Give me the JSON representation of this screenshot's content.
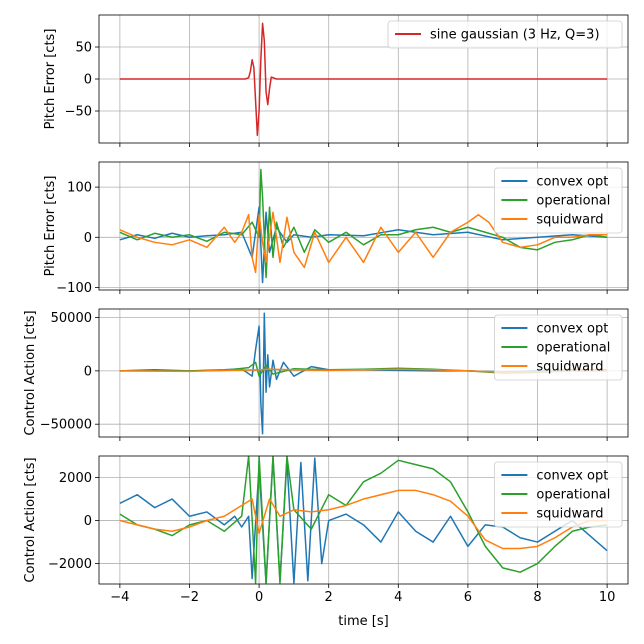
{
  "chart_data": [
    {
      "type": "line",
      "ylabel": "Pitch Error [cts]",
      "xlim": [
        -4.6,
        10.6
      ],
      "ylim": [
        -100,
        100
      ],
      "xticks": [
        -4,
        -2,
        0,
        2,
        4,
        6,
        8,
        10
      ],
      "xticklabels": [
        "",
        "",
        "",
        "",
        "",
        "",
        "",
        ""
      ],
      "yticks": [
        -50,
        0,
        50
      ],
      "yticklabels": [
        "−50",
        "0",
        "50"
      ],
      "grid": true,
      "legend_position": "top-right",
      "series": [
        {
          "name": "sine gaussian (3 Hz, Q=3)",
          "color": "#d62728",
          "x": [
            -4,
            -1,
            -0.4,
            -0.3,
            -0.25,
            -0.2,
            -0.15,
            -0.1,
            -0.05,
            0,
            0.05,
            0.1,
            0.15,
            0.2,
            0.25,
            0.3,
            0.35,
            0.4,
            0.5,
            1,
            10
          ],
          "y": [
            0,
            0,
            0,
            2,
            12,
            30,
            18,
            -35,
            -88,
            -50,
            30,
            87,
            60,
            -20,
            -40,
            -15,
            3,
            2,
            0,
            0,
            0
          ]
        }
      ]
    },
    {
      "type": "line",
      "ylabel": "Pitch Error [cts]",
      "xlim": [
        -4.6,
        10.6
      ],
      "ylim": [
        -105,
        150
      ],
      "xticks": [
        -4,
        -2,
        0,
        2,
        4,
        6,
        8,
        10
      ],
      "xticklabels": [
        "",
        "",
        "",
        "",
        "",
        "",
        "",
        ""
      ],
      "yticks": [
        -100,
        0,
        100
      ],
      "yticklabels": [
        "−100",
        "0",
        "100"
      ],
      "grid": true,
      "legend_position": "top-right",
      "series": [
        {
          "name": "convex opt",
          "color": "#1f77b4",
          "x": [
            -4,
            -3.5,
            -3,
            -2.5,
            -2,
            -1.5,
            -1,
            -0.5,
            -0.2,
            0,
            0.1,
            0.2,
            0.3,
            0.5,
            0.8,
            1,
            1.5,
            2,
            3,
            4,
            5,
            6,
            7,
            8,
            9,
            10
          ],
          "y": [
            -5,
            5,
            -2,
            8,
            0,
            3,
            5,
            10,
            -40,
            60,
            -90,
            50,
            -30,
            20,
            -10,
            5,
            0,
            5,
            3,
            15,
            5,
            10,
            -5,
            0,
            5,
            0
          ]
        },
        {
          "name": "operational",
          "color": "#2ca02c",
          "x": [
            -4,
            -3.5,
            -3,
            -2.5,
            -2,
            -1.5,
            -1,
            -0.5,
            -0.2,
            0,
            0.05,
            0.1,
            0.2,
            0.3,
            0.4,
            0.5,
            0.7,
            1,
            1.3,
            1.6,
            2,
            2.5,
            3,
            3.5,
            4,
            4.5,
            5,
            5.5,
            6,
            6.5,
            7,
            7.5,
            8,
            8.5,
            9,
            9.5,
            10
          ],
          "y": [
            10,
            -5,
            8,
            0,
            5,
            -8,
            10,
            5,
            30,
            0,
            135,
            80,
            -80,
            60,
            -40,
            30,
            -20,
            20,
            -30,
            15,
            -10,
            10,
            -15,
            5,
            5,
            15,
            20,
            10,
            20,
            10,
            0,
            -20,
            -25,
            -10,
            -5,
            5,
            0
          ]
        },
        {
          "name": "squidward",
          "color": "#ff7f0e",
          "x": [
            -4,
            -3.5,
            -3,
            -2.5,
            -2,
            -1.5,
            -1,
            -0.7,
            -0.5,
            -0.3,
            -0.2,
            -0.1,
            0,
            0.1,
            0.2,
            0.4,
            0.6,
            0.8,
            1,
            1.3,
            1.6,
            2,
            2.5,
            3,
            3.5,
            4,
            4.5,
            5,
            5.5,
            6,
            6.3,
            6.6,
            7,
            7.5,
            8,
            8.5,
            9,
            9.5,
            10
          ],
          "y": [
            15,
            0,
            -10,
            -15,
            -5,
            -20,
            20,
            -10,
            10,
            45,
            -40,
            -70,
            45,
            -10,
            -50,
            50,
            -50,
            40,
            -30,
            -60,
            10,
            -50,
            0,
            -50,
            20,
            -30,
            10,
            -40,
            10,
            30,
            45,
            30,
            -10,
            -20,
            -15,
            0,
            0,
            5,
            5
          ]
        }
      ]
    },
    {
      "type": "line",
      "ylabel": "Control Action [cts]",
      "xlim": [
        -4.6,
        10.6
      ],
      "ylim": [
        -62000,
        58000
      ],
      "xticks": [
        -4,
        -2,
        0,
        2,
        4,
        6,
        8,
        10
      ],
      "xticklabels": [
        "",
        "",
        "",
        "",
        "",
        "",
        "",
        ""
      ],
      "yticks": [
        -50000,
        0,
        50000
      ],
      "yticklabels": [
        "−50000",
        "0",
        "50000"
      ],
      "grid": true,
      "legend_position": "top-right",
      "series": [
        {
          "name": "convex opt",
          "color": "#1f77b4",
          "x": [
            -4,
            -3,
            -2,
            -1,
            -0.5,
            -0.2,
            -0.1,
            0,
            0.05,
            0.1,
            0.15,
            0.2,
            0.25,
            0.3,
            0.4,
            0.5,
            0.7,
            1,
            1.5,
            2,
            3,
            4,
            5,
            6,
            7,
            8,
            9,
            10
          ],
          "y": [
            0,
            1000,
            0,
            1000,
            2000,
            -5000,
            20000,
            42000,
            -30000,
            -59000,
            54000,
            -20000,
            15000,
            -15000,
            10000,
            -8000,
            8000,
            -5000,
            4000,
            1000,
            1000,
            500,
            0,
            0,
            -1000,
            0,
            1000,
            1000
          ]
        },
        {
          "name": "operational",
          "color": "#2ca02c",
          "x": [
            -4,
            -2,
            -1,
            -0.3,
            -0.1,
            0,
            0.2,
            0.4,
            1,
            2,
            3,
            4,
            5,
            6,
            7,
            8,
            9,
            10
          ],
          "y": [
            0,
            0,
            500,
            3000,
            8000,
            -5000,
            5000,
            -3000,
            2000,
            1000,
            1500,
            2500,
            1500,
            0,
            -2000,
            -1500,
            0,
            0
          ]
        },
        {
          "name": "squidward",
          "color": "#ff7f0e",
          "x": [
            -4,
            -2,
            -1,
            0,
            0.3,
            1,
            2,
            3,
            4,
            5,
            6,
            7,
            8,
            9,
            10
          ],
          "y": [
            0,
            -500,
            500,
            1000,
            1500,
            1000,
            500,
            1000,
            1500,
            1000,
            0,
            -1200,
            -1000,
            0,
            0
          ]
        }
      ]
    },
    {
      "type": "line",
      "ylabel": "Control Action [cts]",
      "xlabel": "time [s]",
      "xlim": [
        -4.6,
        10.6
      ],
      "ylim": [
        -2950,
        3000
      ],
      "xticks": [
        -4,
        -2,
        0,
        2,
        4,
        6,
        8,
        10
      ],
      "xticklabels": [
        "−4",
        "−2",
        "0",
        "2",
        "4",
        "6",
        "8",
        "10"
      ],
      "yticks": [
        -2000,
        0,
        2000
      ],
      "yticklabels": [
        "−2000",
        "0",
        "2000"
      ],
      "grid": true,
      "legend_position": "top-right",
      "series": [
        {
          "name": "convex opt",
          "color": "#1f77b4",
          "x": [
            -4,
            -3.5,
            -3,
            -2.5,
            -2,
            -1.5,
            -1,
            -0.7,
            -0.5,
            -0.3,
            -0.2,
            0,
            0.2,
            0.4,
            0.6,
            0.8,
            1,
            1.2,
            1.4,
            1.6,
            1.8,
            2,
            2.5,
            3,
            3.5,
            4,
            4.5,
            5,
            5.5,
            6,
            6.5,
            7,
            7.5,
            8,
            8.5,
            9,
            9.5,
            10
          ],
          "y": [
            800,
            1200,
            600,
            1000,
            200,
            400,
            -200,
            200,
            -300,
            200,
            -2700,
            2500,
            -2900,
            2900,
            -2800,
            2800,
            -2900,
            2700,
            -2800,
            2900,
            -2000,
            0,
            300,
            -200,
            -1000,
            400,
            -500,
            -1000,
            200,
            -1200,
            -200,
            -300,
            -800,
            -1000,
            -500,
            0,
            -700,
            -1400
          ]
        },
        {
          "name": "operational",
          "color": "#2ca02c",
          "x": [
            -4,
            -3.5,
            -3,
            -2.5,
            -2,
            -1.5,
            -1,
            -0.5,
            -0.3,
            -0.1,
            0,
            0.2,
            0.4,
            0.6,
            0.8,
            1,
            1.5,
            2,
            2.5,
            3,
            3.5,
            4,
            4.5,
            5,
            5.5,
            6,
            6.5,
            7,
            7.5,
            8,
            8.5,
            9,
            9.5,
            10
          ],
          "y": [
            300,
            -200,
            -400,
            -700,
            -200,
            0,
            -500,
            200,
            3000,
            -2900,
            3000,
            -2900,
            3000,
            -2900,
            3000,
            500,
            -400,
            1200,
            700,
            1800,
            2200,
            2800,
            2600,
            2400,
            1800,
            400,
            -1200,
            -2200,
            -2400,
            -2000,
            -1200,
            -500,
            -300,
            -200
          ]
        },
        {
          "name": "squidward",
          "color": "#ff7f0e",
          "x": [
            -4,
            -3.5,
            -3,
            -2.5,
            -2,
            -1.5,
            -1,
            -0.5,
            -0.2,
            0,
            0.3,
            0.6,
            1,
            1.5,
            2,
            2.5,
            3,
            3.5,
            4,
            4.5,
            5,
            5.5,
            6,
            6.5,
            7,
            7.5,
            8,
            8.5,
            9,
            9.5,
            10
          ],
          "y": [
            0,
            -200,
            -400,
            -500,
            -300,
            0,
            200,
            700,
            1000,
            -600,
            1000,
            200,
            500,
            400,
            500,
            700,
            1000,
            1200,
            1400,
            1400,
            1200,
            900,
            200,
            -900,
            -1300,
            -1300,
            -1200,
            -800,
            -300,
            0,
            0
          ]
        }
      ]
    }
  ]
}
